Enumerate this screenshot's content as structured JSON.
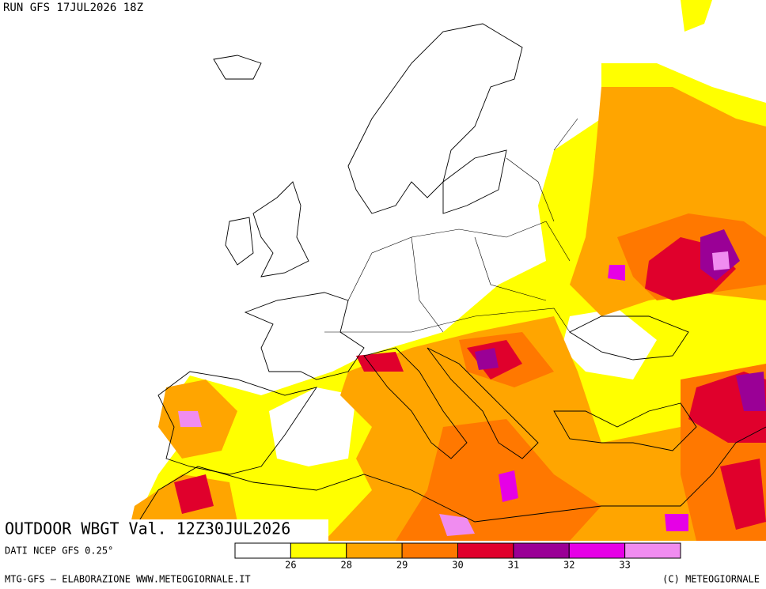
{
  "header": {
    "run": "RUN GFS 17JUL2026 18Z"
  },
  "title": "OUTDOOR WBGT Val. 12Z30JUL2026",
  "source": "DATI NCEP GFS 0.25°",
  "legend": {
    "thresholds": [
      26,
      28,
      29,
      30,
      31,
      32,
      33
    ],
    "colors": [
      "#ffffff",
      "#ffff00",
      "#ffa500",
      "#ff7800",
      "#e0002c",
      "#9a0096",
      "#e600e6",
      "#f08cf0"
    ]
  },
  "footer": {
    "credit": "MTG-GFS — ELABORAZIONE WWW.METEOGIORNALE.IT",
    "copyright": "(C) METEOGIORNALE"
  }
}
